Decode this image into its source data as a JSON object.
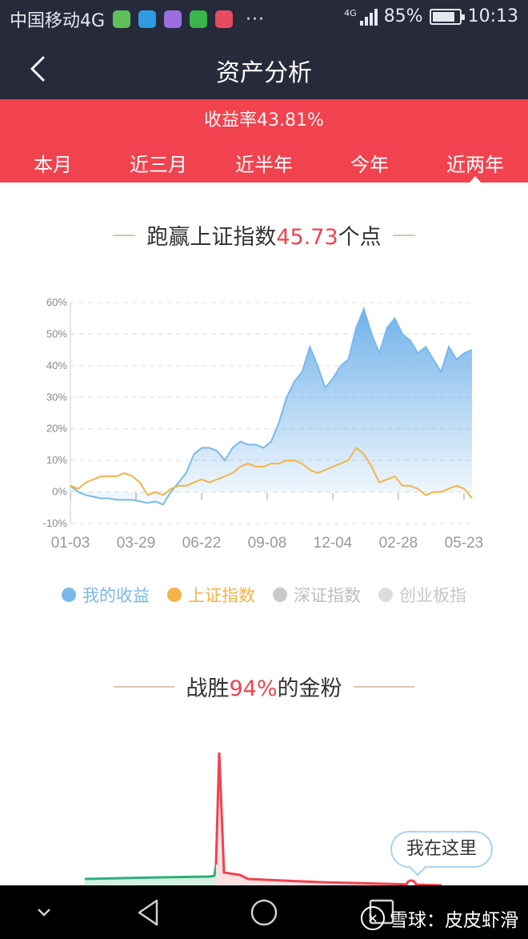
{
  "status_bar": {
    "carrier": "中国移动4G",
    "network": "4G",
    "battery": "85%",
    "battery_level": 0.85,
    "time": "10:13",
    "dots": "···",
    "notification_icons": [
      "wechat-moments-icon",
      "message-icon",
      "gallery-icon",
      "wechat-icon",
      "huawei-icon"
    ]
  },
  "header": {
    "title": "资产分析",
    "back_icon": "chevron-left-icon"
  },
  "summary": {
    "yield_text": "收益率43.81%"
  },
  "tabs": [
    {
      "label": "本月"
    },
    {
      "label": "近三月"
    },
    {
      "label": "近半年"
    },
    {
      "label": "今年"
    },
    {
      "label": "近两年"
    }
  ],
  "active_tab": 4,
  "section1": {
    "prefix": "跑赢上证指数",
    "value": "45.73",
    "suffix": "个点"
  },
  "legend": [
    {
      "label": "我的收益",
      "color": "#7ab8ec",
      "active": true
    },
    {
      "label": "上证指数",
      "color": "#f5b348",
      "active": true
    },
    {
      "label": "深证指数",
      "color": "#c9c9c9",
      "active": false
    },
    {
      "label": "创业板指",
      "color": "#dcdcdc",
      "active": false
    }
  ],
  "section2": {
    "prefix": "战胜",
    "value": "94%",
    "suffix": "的金粉"
  },
  "bubble": {
    "label": "我在这里"
  },
  "watermark": {
    "text": "雪球：皮皮虾滑",
    "logo": "xueqiu-logo"
  },
  "nav_icons": [
    "chevron-down-icon",
    "back-triangle-icon",
    "home-circle-icon",
    "recents-square-icon"
  ],
  "chart_data": {
    "type": "area",
    "x_ticks": [
      "01-03",
      "03-29",
      "06-22",
      "09-08",
      "12-04",
      "02-28",
      "05-23"
    ],
    "y_ticks": [
      "60%",
      "50%",
      "40%",
      "30%",
      "20%",
      "10%",
      "0%",
      "-10%"
    ],
    "ylim": [
      -10,
      60
    ],
    "grid": true,
    "series": [
      {
        "name": "我的收益",
        "color": "#7ab8ec",
        "values": [
          2,
          0,
          -1,
          -1.5,
          -2,
          -2,
          -2.5,
          -2.5,
          -2.5,
          -3,
          -3.5,
          -3,
          -4,
          0,
          3,
          6,
          12,
          14,
          14,
          13,
          10,
          14,
          16,
          15,
          15,
          14,
          16,
          22,
          30,
          35,
          38,
          46,
          40,
          33,
          36,
          40,
          42,
          52,
          58,
          50,
          44,
          52,
          55,
          50,
          48,
          44,
          46,
          42,
          38,
          46,
          42,
          44,
          45
        ]
      },
      {
        "name": "上证指数",
        "color": "#f5b348",
        "values": [
          2,
          1,
          3,
          4,
          5,
          5,
          5,
          6,
          5,
          3,
          -1,
          0,
          -1,
          1,
          2,
          2,
          3,
          4,
          3,
          4,
          5,
          6,
          8,
          9,
          8,
          8,
          9,
          9,
          10,
          10,
          9,
          7,
          6,
          7,
          8,
          9,
          10,
          14,
          12,
          8,
          3,
          4,
          5,
          2,
          2,
          1,
          -1,
          0,
          0,
          1,
          2,
          1,
          -2
        ]
      }
    ]
  },
  "distribution_chart": {
    "type": "line",
    "peak_label": "战胜94%的金粉",
    "colors": {
      "low": "#2cae7c",
      "high": "#f0434f"
    }
  }
}
